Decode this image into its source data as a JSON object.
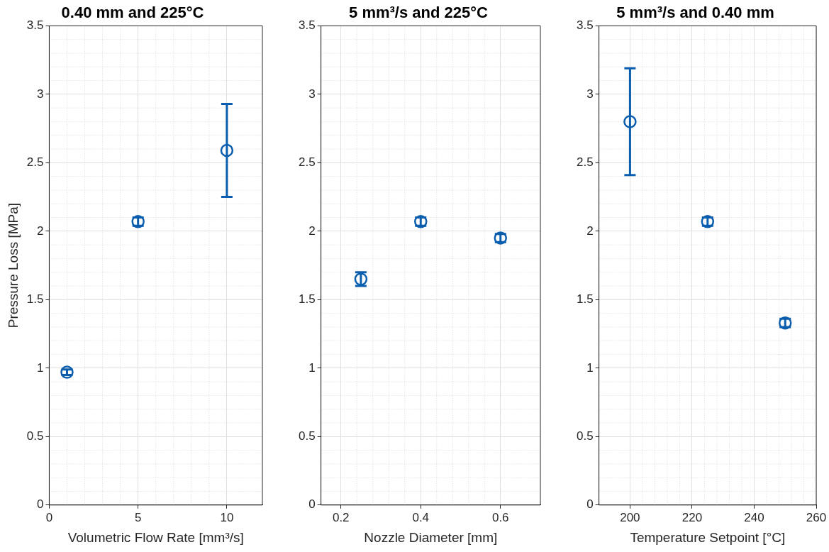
{
  "chart_data": [
    {
      "type": "scatter",
      "title": "0.40 mm and 225°C",
      "xlabel": "Volumetric Flow Rate [mm³/s]",
      "ylabel": "Pressure Loss [MPa]",
      "x": [
        1,
        5,
        10
      ],
      "xlim": [
        0,
        12
      ],
      "xticks": [
        0,
        5,
        10
      ],
      "ylim": [
        0,
        3.5
      ],
      "yticks": [
        0,
        0.5,
        1,
        1.5,
        2,
        2.5,
        3,
        3.5
      ],
      "grid": true,
      "marker": "circle",
      "series": [
        {
          "color": "#0a5ead",
          "values": [
            0.97,
            2.07,
            2.59
          ],
          "errors": [
            0.02,
            0.03,
            0.34
          ]
        }
      ]
    },
    {
      "type": "scatter",
      "title": "5 mm³/s and 225°C",
      "xlabel": "Nozzle Diameter [mm]",
      "x": [
        0.25,
        0.4,
        0.6
      ],
      "xlim": [
        0.15,
        0.7
      ],
      "xticks": [
        0.2,
        0.4,
        0.6
      ],
      "ylim": [
        0,
        3.5
      ],
      "yticks": [
        0,
        0.5,
        1,
        1.5,
        2,
        2.5,
        3,
        3.5
      ],
      "grid": true,
      "marker": "circle",
      "series": [
        {
          "color": "#0a5ead",
          "values": [
            1.65,
            2.07,
            1.95
          ],
          "errors": [
            0.05,
            0.03,
            0.03
          ]
        }
      ]
    },
    {
      "type": "scatter",
      "title": "5 mm³/s and 0.40 mm",
      "xlabel": "Temperature Setpoint [°C]",
      "x": [
        200,
        225,
        250
      ],
      "xlim": [
        190,
        260
      ],
      "xticks": [
        200,
        220,
        240,
        260
      ],
      "ylim": [
        0,
        3.5
      ],
      "yticks": [
        0,
        0.5,
        1,
        1.5,
        2,
        2.5,
        3,
        3.5
      ],
      "grid": true,
      "marker": "circle",
      "series": [
        {
          "color": "#0a5ead",
          "values": [
            2.8,
            2.07,
            1.33
          ],
          "errors": [
            0.39,
            0.03,
            0.03
          ]
        }
      ]
    }
  ]
}
